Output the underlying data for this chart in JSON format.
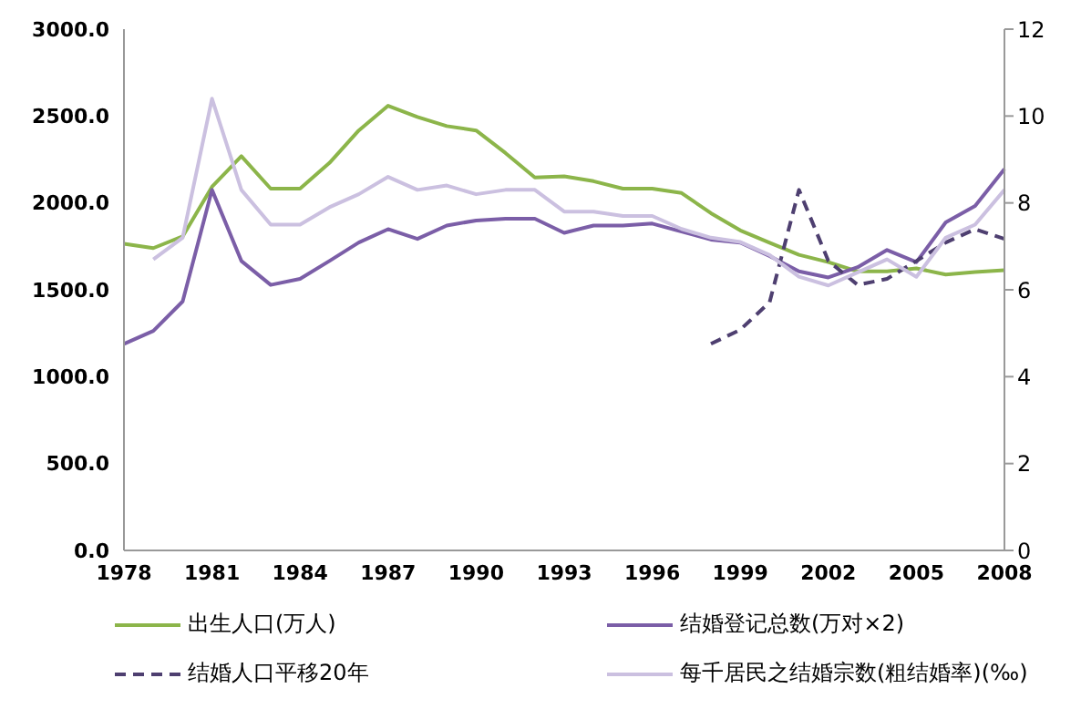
{
  "chart_data": {
    "type": "line",
    "categories": [
      "1978",
      null,
      null,
      "1981",
      null,
      null,
      "1984",
      null,
      null,
      "1987",
      null,
      null,
      "1990",
      null,
      null,
      "1993",
      null,
      null,
      "1996",
      null,
      null,
      "1999",
      null,
      null,
      "2002",
      null,
      null,
      "2005",
      null,
      null,
      "2008"
    ],
    "series": [
      {
        "name": "出生人口(万人)",
        "color": "#8cb54a",
        "values": [
          1765,
          1740,
          1807,
          2093,
          2269,
          2082,
          2082,
          2230,
          2417,
          2559,
          2495,
          2442,
          2417,
          2287,
          2146,
          2153,
          2125,
          2082,
          2082,
          2057,
          1941,
          1842,
          1771,
          1701,
          1659,
          1606,
          1606,
          1623,
          1588,
          1602,
          1613
        ]
      },
      {
        "name": "结婚登记总数(万对×2)",
        "color": "#7b5ea7",
        "values": [
          1189,
          1263,
          1433,
          2075,
          1666,
          1528,
          1563,
          1666,
          1772,
          1849,
          1793,
          1870,
          1899,
          1909,
          1909,
          1828,
          1870,
          1870,
          1881,
          1835,
          1789,
          1772,
          1694,
          1606,
          1571,
          1630,
          1729,
          1659,
          1888,
          1983,
          2195
        ]
      },
      {
        "name": "结婚人口平移20年",
        "color": "#4e3f70",
        "line_style": "dashed",
        "values": [
          null,
          null,
          null,
          null,
          null,
          null,
          null,
          null,
          null,
          null,
          null,
          null,
          null,
          null,
          null,
          null,
          null,
          null,
          null,
          null,
          1189,
          1270,
          1429,
          2075,
          1666,
          1528,
          1563,
          1666,
          1772,
          1849,
          1793
        ]
      },
      {
        "name": "每千居民之结婚宗数(粗结婚率)(‰)",
        "color": "#cbc0e0",
        "axis": "y2",
        "values": [
          null,
          6.7,
          7.2,
          10.4,
          8.3,
          7.5,
          7.5,
          7.9,
          8.2,
          8.6,
          8.3,
          8.4,
          8.2,
          8.3,
          8.3,
          7.8,
          7.8,
          7.7,
          7.7,
          7.4,
          7.2,
          7.1,
          6.8,
          6.3,
          6.1,
          6.4,
          6.7,
          6.3,
          7.2,
          7.5,
          8.3
        ]
      }
    ],
    "ylim": [
      0,
      3000
    ],
    "yticks": [
      {
        "value": 0,
        "label": "0.0"
      },
      {
        "value": 500,
        "label": "500.0"
      },
      {
        "value": 1000,
        "label": "1000.0"
      },
      {
        "value": 1500,
        "label": "1500.0"
      },
      {
        "value": 2000,
        "label": "2000.0"
      },
      {
        "value": 2500,
        "label": "2500.0"
      },
      {
        "value": 3000,
        "label": "3000.0"
      }
    ],
    "y2lim": [
      0,
      12
    ],
    "y2ticks": [
      0,
      2,
      4,
      6,
      8,
      10,
      12
    ],
    "grid": false,
    "legend": "bottom",
    "marker": "none",
    "line_style": "solid"
  }
}
